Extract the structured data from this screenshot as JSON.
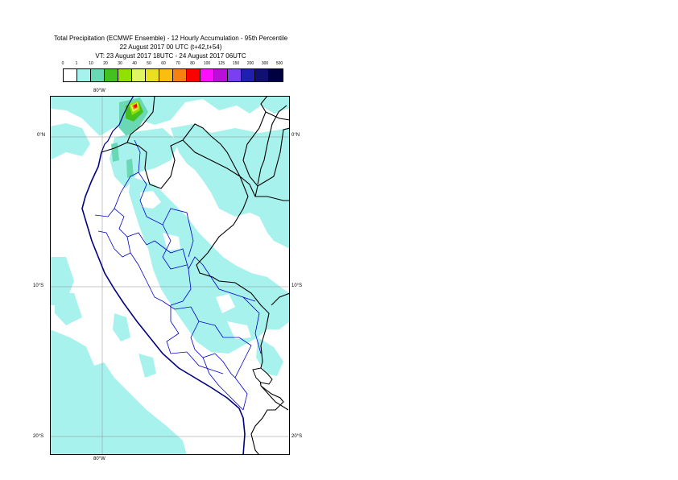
{
  "title": {
    "line1": "Total Precipitation (ECMWF Ensemble) - 12 Hourly Accumulation - 95th Percentile",
    "line2": "22 August 2017 00 UTC (t+42,t+54)",
    "line3": "VT: 23 August 2017 18UTC - 24 August 2017 06UTC"
  },
  "legend": {
    "ticks": [
      "0",
      "1",
      "10",
      "20",
      "30",
      "40",
      "50",
      "60",
      "70",
      "80",
      "100",
      "125",
      "150",
      "200",
      "300",
      "500"
    ],
    "colors": [
      "#ffffff",
      "#a8f2ee",
      "#6ad8b4",
      "#44c020",
      "#90e000",
      "#e0f660",
      "#e8e020",
      "#f8be10",
      "#f88010",
      "#fe0000",
      "#fe10fe",
      "#b810d8",
      "#7840f0",
      "#2020b0",
      "#101070",
      "#000040"
    ]
  },
  "map": {
    "lat_labels": [
      "0°N",
      "10°S",
      "20°S"
    ],
    "lon_labels": [
      "80°W"
    ],
    "coast_color": "#000080",
    "border_color": "#000000",
    "admin_color": "#0000cc",
    "rain_color": "#a8f2ee"
  }
}
